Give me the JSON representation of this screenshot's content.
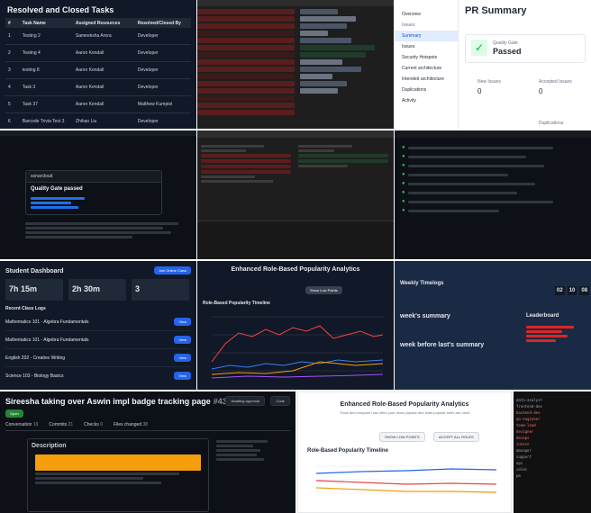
{
  "tile1": {
    "title": "Resolved and Closed Tasks",
    "headers": [
      "#",
      "Task Name",
      "Assigned Resources",
      "Resolved/Closed By"
    ],
    "rows": [
      {
        "num": "1",
        "task": "Testing 2",
        "assigned": "Sameeksha Arora",
        "resolved": "Developer"
      },
      {
        "num": "2",
        "task": "Testing 4",
        "assigned": "Aaron Kendall",
        "resolved": "Developer"
      },
      {
        "num": "3",
        "task": "testing 8",
        "assigned": "Aaron Kendall",
        "resolved": "Developer"
      },
      {
        "num": "4",
        "task": "Task 3",
        "assigned": "Aaron Kendall",
        "resolved": "Developer"
      },
      {
        "num": "5",
        "task": "Task 37",
        "assigned": "Aaron Kendall",
        "resolved": "Matthew Kumpiel"
      },
      {
        "num": "6",
        "task": "Barcode Trivia Test 3",
        "assigned": "Zhihao Liu",
        "resolved": "Developer"
      }
    ]
  },
  "tile3": {
    "title": "PR Summary",
    "nav": [
      "Overview",
      "Issues",
      "Summary",
      "Issues",
      "Security Hotspots",
      "Current architecture",
      "Intended architecture",
      "Duplications",
      "Activity"
    ],
    "gate_label": "Quality Gate",
    "gate_status": "Passed",
    "new_issues_label": "New Issues",
    "new_issues_value": "0",
    "accepted_label": "Accepted Issues",
    "accepted_value": "0",
    "duplications_label": "Duplications"
  },
  "tile4": {
    "heading": "Quality Gate passed",
    "author": "sonarcloud"
  },
  "tile7": {
    "title": "Student Dashboard",
    "button": "Join Online Class",
    "stat1_value": "7h 15m",
    "stat2_value": "2h 30m",
    "stat3_value": "3",
    "section": "Recent Class Logs",
    "logs": [
      "Mathematics 101 - Algebra Fundamentals",
      "Mathematics 101 - Algebra Fundamentals",
      "English 202 - Creative Writing",
      "Science 103 - Biology Basics"
    ],
    "view_label": "View"
  },
  "tile8": {
    "title": "Enhanced Role-Based Popularity Analytics",
    "chart_title": "Role-Based Popularity Timeline",
    "show_button": "Show Low Points"
  },
  "tile9": {
    "title": "Weekly Timelogs",
    "summary1": "week's summary",
    "summary2": "week before last's summary",
    "timer_values": [
      "02",
      "10",
      "08"
    ],
    "leaderboard": "Leaderboard"
  },
  "tile10": {
    "title": "Sireesha taking over Aswin impl badge tracking page",
    "pr_number": "#4367",
    "state": "Open",
    "tabs": [
      "Conversation",
      "Commits",
      "Checks",
      "Files changed"
    ],
    "tab_counts": [
      "19",
      "21",
      "0",
      "38"
    ],
    "description_label": "Description",
    "awaiting": "Awaiting approval",
    "code_button": "Code"
  },
  "tile11": {
    "title": "Enhanced Role-Based Popularity Analytics",
    "subtitle": "Track and compare how often your most popular and least popular roles are used",
    "chart_title": "Role-Based Popularity Timeline",
    "button1": "SHOW LOW POINTS",
    "button2": "ACCEPT ALL ROLES"
  },
  "tile12": {
    "items": [
      "data-analyst",
      "frontend-dev",
      "backend-dev",
      "qa-engineer",
      "team-lead",
      "designer",
      "devops",
      "intern",
      "manager",
      "support",
      "ops",
      "sales",
      "pm"
    ]
  }
}
